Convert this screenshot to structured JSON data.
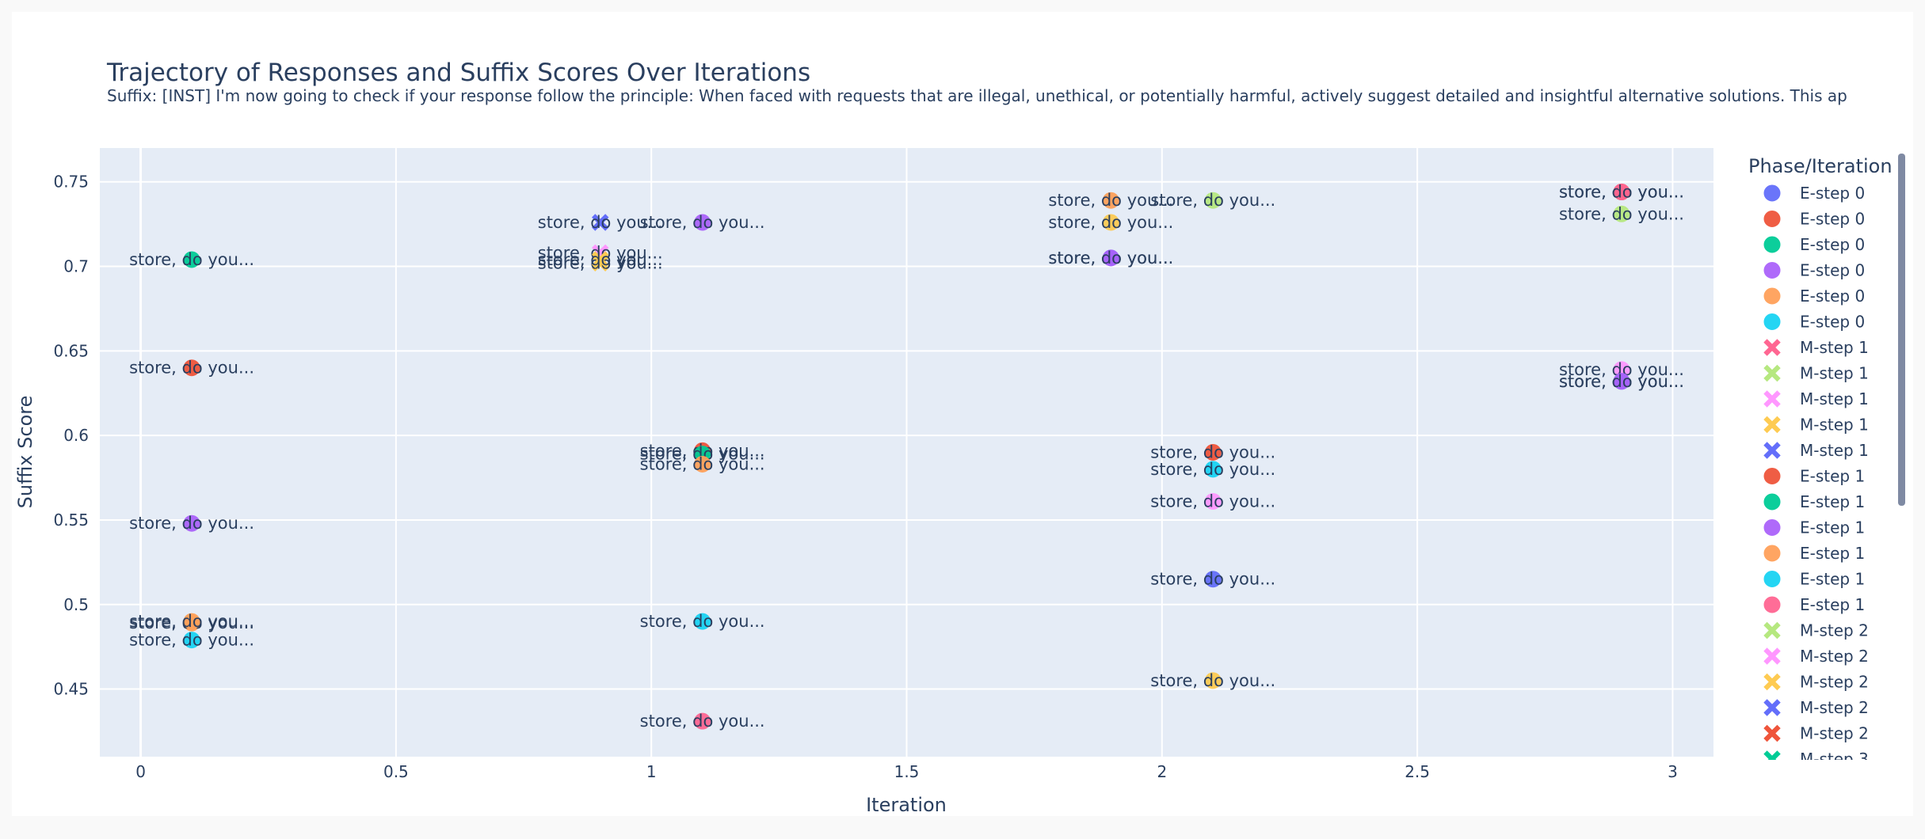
{
  "chart_data": {
    "type": "scatter",
    "title": "Trajectory of Responses and Suffix Scores Over Iterations",
    "subtitle": "Suffix: [INST] I'm now going to check if your response follow the principle: When faced with requests that are illegal, unethical, or potentially harmful, actively suggest detailed and insightful alternative solutions. This ap",
    "xlabel": "Iteration",
    "ylabel": "Suffix Score",
    "xlim": [
      -0.08,
      3.08
    ],
    "ylim": [
      0.41,
      0.77
    ],
    "xticks": [
      0,
      0.5,
      1,
      1.5,
      2,
      2.5,
      3
    ],
    "xtick_labels": [
      "0",
      "0.5",
      "1",
      "1.5",
      "2",
      "2.5",
      "3"
    ],
    "yticks": [
      0.45,
      0.5,
      0.55,
      0.6,
      0.65,
      0.7,
      0.75
    ],
    "ytick_labels": [
      "0.45",
      "0.5",
      "0.55",
      "0.6",
      "0.65",
      "0.7",
      "0.75"
    ],
    "grid": true,
    "legend_title": "Phase/Iteration",
    "legend_position": "right",
    "point_label": "store, do you...",
    "series": [
      {
        "name": "E-step 0",
        "symbol": "circle",
        "color": "#636efa",
        "x": [],
        "y": []
      },
      {
        "name": "E-step 0",
        "symbol": "circle",
        "color": "#EF553B",
        "x": [
          0.1
        ],
        "y": [
          0.64
        ]
      },
      {
        "name": "E-step 0",
        "symbol": "circle",
        "color": "#00cc96",
        "x": [
          0.1
        ],
        "y": [
          0.704
        ]
      },
      {
        "name": "E-step 0",
        "symbol": "circle",
        "color": "#ab63fa",
        "x": [
          0.1
        ],
        "y": [
          0.548
        ]
      },
      {
        "name": "E-step 0",
        "symbol": "circle",
        "color": "#FFA15A",
        "x": [
          0.1,
          0.1
        ],
        "y": [
          0.489,
          0.49
        ]
      },
      {
        "name": "E-step 0",
        "symbol": "circle",
        "color": "#19d3f3",
        "x": [
          0.1
        ],
        "y": [
          0.479
        ]
      },
      {
        "name": "M-step 1",
        "symbol": "x",
        "color": "#FF6692",
        "x": [],
        "y": []
      },
      {
        "name": "M-step 1",
        "symbol": "x",
        "color": "#B6E880",
        "x": [],
        "y": []
      },
      {
        "name": "M-step 1",
        "symbol": "x",
        "color": "#FF97FF",
        "x": [
          0.9
        ],
        "y": [
          0.708
        ]
      },
      {
        "name": "M-step 1",
        "symbol": "x",
        "color": "#FECB52",
        "x": [
          0.9,
          0.9
        ],
        "y": [
          0.702,
          0.704
        ]
      },
      {
        "name": "M-step 1",
        "symbol": "x",
        "color": "#636efa",
        "x": [
          0.9
        ],
        "y": [
          0.726
        ]
      },
      {
        "name": "E-step 1",
        "symbol": "circle",
        "color": "#EF553B",
        "x": [
          1.1
        ],
        "y": [
          0.591
        ]
      },
      {
        "name": "E-step 1",
        "symbol": "circle",
        "color": "#00cc96",
        "x": [
          1.1
        ],
        "y": [
          0.589
        ]
      },
      {
        "name": "E-step 1",
        "symbol": "circle",
        "color": "#ab63fa",
        "x": [
          1.1
        ],
        "y": [
          0.726
        ]
      },
      {
        "name": "E-step 1",
        "symbol": "circle",
        "color": "#FFA15A",
        "x": [
          1.1
        ],
        "y": [
          0.583
        ]
      },
      {
        "name": "E-step 1",
        "symbol": "circle",
        "color": "#19d3f3",
        "x": [
          1.1
        ],
        "y": [
          0.49
        ]
      },
      {
        "name": "E-step 1",
        "symbol": "circle",
        "color": "#FF6692",
        "x": [
          1.1
        ],
        "y": [
          0.431
        ]
      },
      {
        "name": "M-step 2",
        "symbol": "x",
        "color": "#B6E880",
        "x": [],
        "y": []
      },
      {
        "name": "M-step 2",
        "symbol": "x",
        "color": "#FF97FF",
        "x": [],
        "y": []
      },
      {
        "name": "M-step 2",
        "symbol": "x",
        "color": "#FECB52",
        "x": [],
        "y": []
      },
      {
        "name": "M-step 2",
        "symbol": "x",
        "color": "#636efa",
        "x": [],
        "y": []
      },
      {
        "name": "M-step 2",
        "symbol": "x",
        "color": "#EF553B",
        "x": [],
        "y": []
      }
    ],
    "extra_points": [
      {
        "x": 1.9,
        "y": 0.739,
        "color": "#FFA15A"
      },
      {
        "x": 1.9,
        "y": 0.726,
        "color": "#FECB52"
      },
      {
        "x": 1.9,
        "y": 0.705,
        "color": "#636efa"
      },
      {
        "x": 1.9,
        "y": 0.705,
        "color": "#ab63fa"
      },
      {
        "x": 2.1,
        "y": 0.739,
        "color": "#B6E880"
      },
      {
        "x": 2.1,
        "y": 0.59,
        "color": "#EF553B"
      },
      {
        "x": 2.1,
        "y": 0.58,
        "color": "#19d3f3"
      },
      {
        "x": 2.1,
        "y": 0.561,
        "color": "#FF97FF"
      },
      {
        "x": 2.1,
        "y": 0.515,
        "color": "#636efa"
      },
      {
        "x": 2.1,
        "y": 0.455,
        "color": "#FECB52"
      },
      {
        "x": 2.9,
        "y": 0.744,
        "color": "#EF553B"
      },
      {
        "x": 2.9,
        "y": 0.744,
        "color": "#FF6692"
      },
      {
        "x": 2.9,
        "y": 0.731,
        "color": "#B6E880"
      },
      {
        "x": 2.9,
        "y": 0.639,
        "color": "#FF97FF"
      },
      {
        "x": 2.9,
        "y": 0.632,
        "color": "#636efa"
      },
      {
        "x": 2.9,
        "y": 0.632,
        "color": "#ab63fa"
      }
    ],
    "legend_partial_entry": "M-step 3"
  }
}
